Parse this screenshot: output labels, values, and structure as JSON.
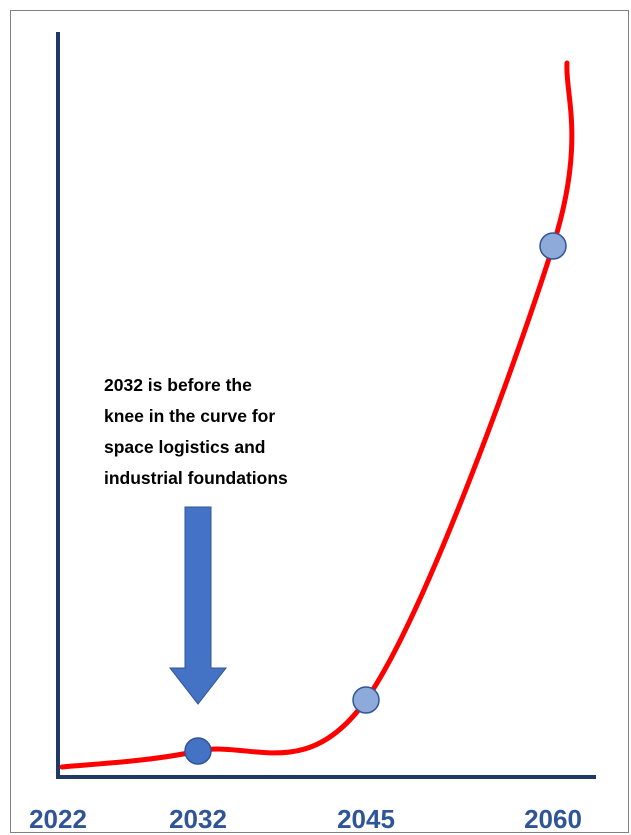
{
  "chart_data": {
    "type": "line",
    "title": "",
    "xlabel": "",
    "ylabel": "",
    "x_ticks": [
      "2022",
      "2032",
      "2045",
      "2060"
    ],
    "series": [
      {
        "x": [
          2022,
          2032,
          2045,
          2060,
          2061
        ],
        "y": [
          0.08,
          0.25,
          1.0,
          8.0,
          12.0
        ],
        "color": "#ff0000"
      }
    ],
    "markers": [
      {
        "x": 2032,
        "y": 0.25,
        "color": "#4472c4"
      },
      {
        "x": 2045,
        "y": 1.0,
        "color": "#8eaadb"
      },
      {
        "x": 2060,
        "y": 8.0,
        "color": "#8eaadb"
      }
    ],
    "annotation": {
      "lines": [
        "2032 is before the",
        "knee in the curve for",
        "space logistics and",
        "industrial foundations"
      ],
      "arrow_target_x": 2032,
      "arrow_color": "#4472c4"
    },
    "axis_color": "#1f3864",
    "grid": false,
    "legend": "none"
  }
}
